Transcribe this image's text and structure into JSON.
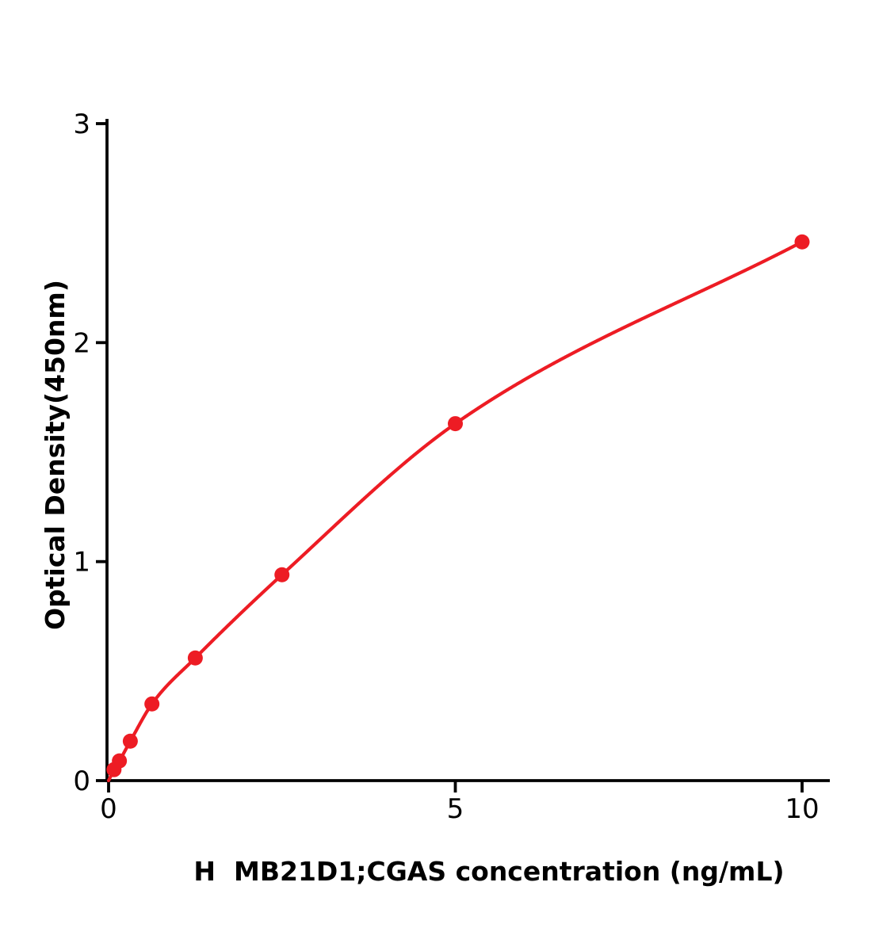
{
  "chart_data": {
    "type": "scatter",
    "title": "",
    "xlabel": "H  MB21D1;CGAS concentration (ng/mL)",
    "ylabel": "Optical Density(450nm)",
    "x": [
      0.078,
      0.156,
      0.313,
      0.625,
      1.25,
      2.5,
      5,
      10
    ],
    "y": [
      0.05,
      0.09,
      0.18,
      0.35,
      0.56,
      0.94,
      1.63,
      2.46
    ],
    "curve_starts_at_origin": true,
    "xlim": [
      0,
      10.4
    ],
    "ylim": [
      0,
      3
    ],
    "xticks": [
      0,
      5,
      10
    ],
    "xtick_labels": [
      "0",
      "5",
      "10"
    ],
    "yticks": [
      0,
      1,
      2,
      3
    ],
    "ytick_labels": [
      "0",
      "1",
      "2",
      "3"
    ],
    "grid": false,
    "legend": "none",
    "line_color": "#ed1c24",
    "marker_color": "#ed1c24",
    "axis_color": "#000000"
  }
}
